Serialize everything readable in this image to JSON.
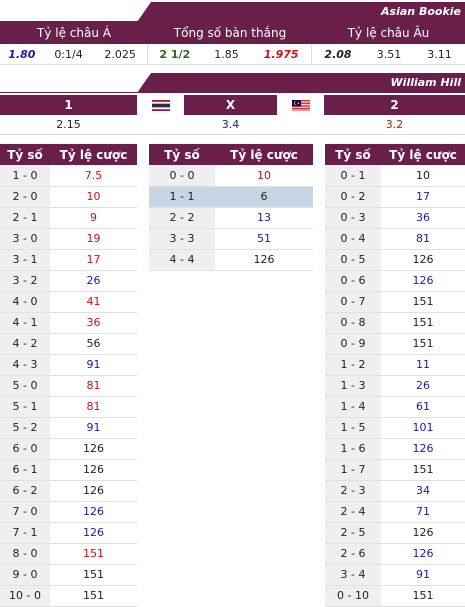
{
  "asian_bookie": {
    "title": "Asian Bookie",
    "headers": [
      "Tỷ lệ châu Á",
      "Tổng số bàn thắng",
      "Tỷ lệ châu Âu"
    ],
    "asian_handicap": [
      "1.80",
      "0:1/4",
      "2.025"
    ],
    "total_goals": [
      "2 1/2",
      "1.85",
      "1.975"
    ],
    "european": [
      "2.08",
      "3.51",
      "3.11"
    ]
  },
  "william_hill": {
    "title": "William Hill",
    "labels": [
      "1",
      "X",
      "2"
    ],
    "values": [
      "2.15",
      "3.4",
      "3.2"
    ]
  },
  "score_headers": {
    "score": "Tỷ số",
    "odds": "Tỷ lệ cược"
  },
  "home_wins": [
    {
      "score": "1 - 0",
      "odds": "7.5",
      "color": "red"
    },
    {
      "score": "2 - 0",
      "odds": "10",
      "color": "red"
    },
    {
      "score": "2 - 1",
      "odds": "9",
      "color": "red"
    },
    {
      "score": "3 - 0",
      "odds": "19",
      "color": "red"
    },
    {
      "score": "3 - 1",
      "odds": "17",
      "color": "red"
    },
    {
      "score": "3 - 2",
      "odds": "26",
      "color": "blue"
    },
    {
      "score": "4 - 0",
      "odds": "41",
      "color": "red"
    },
    {
      "score": "4 - 1",
      "odds": "36",
      "color": "red"
    },
    {
      "score": "4 - 2",
      "odds": "56",
      "color": "black"
    },
    {
      "score": "4 - 3",
      "odds": "91",
      "color": "blue"
    },
    {
      "score": "5 - 0",
      "odds": "81",
      "color": "red"
    },
    {
      "score": "5 - 1",
      "odds": "81",
      "color": "red"
    },
    {
      "score": "5 - 2",
      "odds": "91",
      "color": "blue"
    },
    {
      "score": "6 - 0",
      "odds": "126",
      "color": "black"
    },
    {
      "score": "6 - 1",
      "odds": "126",
      "color": "black"
    },
    {
      "score": "6 - 2",
      "odds": "126",
      "color": "black"
    },
    {
      "score": "7 - 0",
      "odds": "126",
      "color": "blue"
    },
    {
      "score": "7 - 1",
      "odds": "126",
      "color": "blue"
    },
    {
      "score": "8 - 0",
      "odds": "151",
      "color": "red"
    },
    {
      "score": "9 - 0",
      "odds": "151",
      "color": "black"
    },
    {
      "score": "10 - 0",
      "odds": "151",
      "color": "black"
    }
  ],
  "draws": [
    {
      "score": "0 - 0",
      "odds": "10",
      "color": "red"
    },
    {
      "score": "1 - 1",
      "odds": "6",
      "color": "black",
      "highlight": true
    },
    {
      "score": "2 - 2",
      "odds": "13",
      "color": "blue"
    },
    {
      "score": "3 - 3",
      "odds": "51",
      "color": "blue"
    },
    {
      "score": "4 - 4",
      "odds": "126",
      "color": "black"
    }
  ],
  "away_wins": [
    {
      "score": "0 - 1",
      "odds": "10",
      "color": "black"
    },
    {
      "score": "0 - 2",
      "odds": "17",
      "color": "blue"
    },
    {
      "score": "0 - 3",
      "odds": "36",
      "color": "blue"
    },
    {
      "score": "0 - 4",
      "odds": "81",
      "color": "blue"
    },
    {
      "score": "0 - 5",
      "odds": "126",
      "color": "black"
    },
    {
      "score": "0 - 6",
      "odds": "126",
      "color": "blue"
    },
    {
      "score": "0 - 7",
      "odds": "151",
      "color": "black"
    },
    {
      "score": "0 - 8",
      "odds": "151",
      "color": "black"
    },
    {
      "score": "0 - 9",
      "odds": "151",
      "color": "black"
    },
    {
      "score": "1 - 2",
      "odds": "11",
      "color": "blue"
    },
    {
      "score": "1 - 3",
      "odds": "26",
      "color": "blue"
    },
    {
      "score": "1 - 4",
      "odds": "61",
      "color": "blue"
    },
    {
      "score": "1 - 5",
      "odds": "101",
      "color": "blue"
    },
    {
      "score": "1 - 6",
      "odds": "126",
      "color": "blue"
    },
    {
      "score": "1 - 7",
      "odds": "151",
      "color": "black"
    },
    {
      "score": "2 - 3",
      "odds": "34",
      "color": "blue"
    },
    {
      "score": "2 - 4",
      "odds": "71",
      "color": "blue"
    },
    {
      "score": "2 - 5",
      "odds": "126",
      "color": "black"
    },
    {
      "score": "2 - 6",
      "odds": "126",
      "color": "blue"
    },
    {
      "score": "3 - 4",
      "odds": "91",
      "color": "blue"
    },
    {
      "score": "0 - 10",
      "odds": "151",
      "color": "black"
    }
  ],
  "colors": {
    "brand": "#6a1f4b",
    "red": "#d01010",
    "blue": "#1a1aa6",
    "green": "#2a6a1a",
    "highlight": "#c7d6e4",
    "score_bg": "#efefef"
  },
  "icons": {
    "home_flag": "thailand-flag-icon",
    "away_flag": "malaysia-flag-icon"
  }
}
